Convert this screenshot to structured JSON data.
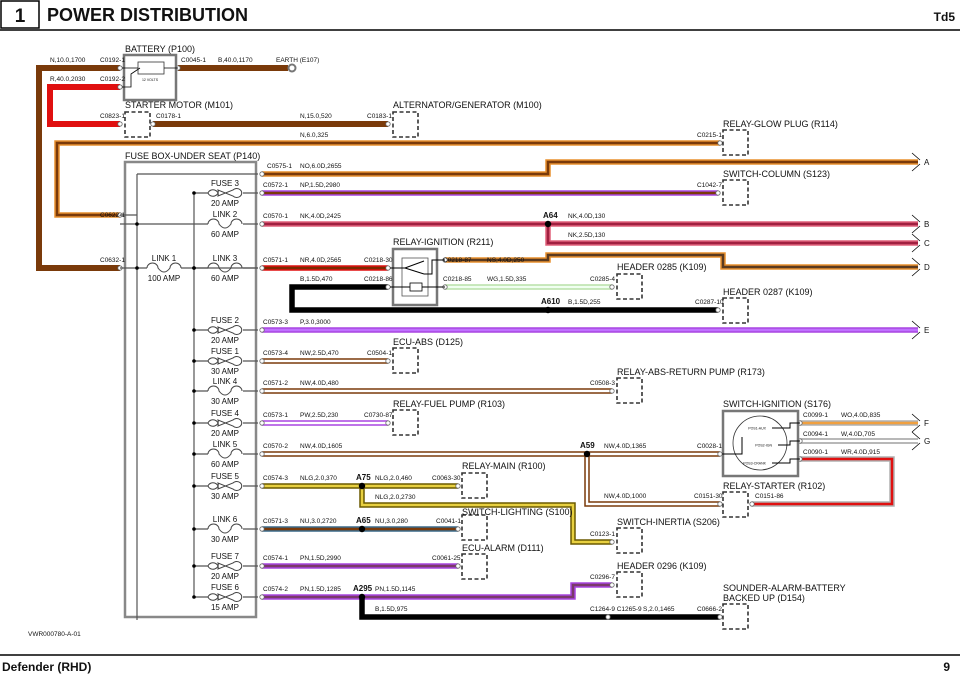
{
  "header": {
    "page_number": "1",
    "title": "POWER DISTRIBUTION",
    "engine": "Td5"
  },
  "footer": {
    "model": "Defender (RHD)",
    "page": "9",
    "drawing_ref": "VWR000780-A-01"
  },
  "components": {
    "battery": "BATTERY (P100)",
    "battery_volts": "12 VOLTS",
    "starter_motor": "STARTER MOTOR (M101)",
    "alternator": "ALTERNATOR/GENERATOR (M100)",
    "relay_glow_plug": "RELAY-GLOW PLUG (R114)",
    "fuse_box": "FUSE BOX-UNDER SEAT (P140)",
    "switch_column": "SWITCH-COLUMN (S123)",
    "relay_ignition": "RELAY-IGNITION (R211)",
    "header_0285": "HEADER 0285 (K109)",
    "header_0287": "HEADER 0287 (K109)",
    "ecu_abs": "ECU-ABS (D125)",
    "relay_abs_pump": "RELAY-ABS-RETURN PUMP (R173)",
    "relay_fuel_pump": "RELAY-FUEL PUMP (R103)",
    "switch_ignition": "SWITCH-IGNITION (S176)",
    "relay_main": "RELAY-MAIN (R100)",
    "relay_starter": "RELAY-STARTER (R102)",
    "switch_lighting": "SWITCH-LIGHTING (S100)",
    "switch_inertia": "SWITCH-INERTIA (S206)",
    "ecu_alarm": "ECU-ALARM (D111)",
    "header_0296": "HEADER 0296 (K109)",
    "sounder_line1": "SOUNDER-ALARM-BATTERY",
    "sounder_line2": "BACKED UP (D154)",
    "earth": "EARTH (E107)"
  },
  "ignition_positions": [
    "POS1-AUX",
    "POS2-IGN",
    "POS3-CRANK"
  ],
  "connectors": {
    "c0192_1": "C0192-1",
    "c0192_2": "C0192-2",
    "c0045_1": "C0045-1",
    "c0823_1": "C0823-1",
    "c0178_1": "C0178-1",
    "c0183_1": "C0183-1",
    "c0215_1": "C0215-1",
    "c0575_1": "C0575-1",
    "c0572_1": "C0572-1",
    "c1042_7": "C1042-7",
    "c0622_1": "C0622-1",
    "c0570_1": "C0570-1",
    "c0632_1": "C0632-1",
    "c0571_1": "C0571-1",
    "c0218_30": "C0218-30",
    "c0218_87": "C0218-87",
    "c0218_86": "C0218-86",
    "c0218_85": "C0218-85",
    "c0285_4": "C0285-4",
    "c0287_10": "C0287-10",
    "c0573_3": "C0573-3",
    "c0573_4": "C0573-4",
    "c0504_1": "C0504-1",
    "c0571_2": "C0571-2",
    "c0508_3": "C0508-3",
    "c0573_1": "C0573-1",
    "c0730_87": "C0730-87",
    "c0099_1": "C0099-1",
    "c0094_1": "C0094-1",
    "c0090_1": "C0090-1",
    "c0570_2": "C0570-2",
    "c0028_1": "C0028-1",
    "c0574_3": "C0574-3",
    "c0063_30": "C0063-30",
    "c0151_30": "C0151-30",
    "c0151_86": "C0151-86",
    "c0571_3": "C0571-3",
    "c0041_1": "C0041-1",
    "c0123_1": "C0123-1",
    "c0574_1": "C0574-1",
    "c0061_25": "C0061-25",
    "c0296_7": "C0296-7",
    "c0574_2": "C0574-2",
    "c1264_c1265": "C1264-9 C1265-9",
    "c0666_2": "C0666-2"
  },
  "wires": {
    "w_n_10_1700": "N,10.0,1700",
    "w_r_40_2030": "R,40.0,2030",
    "w_b_40_1170": "B,40.0,1170",
    "w_n_15_520": "N,15.0,520",
    "w_n_6_325": "N,6.0,325",
    "w_no_2655": "NO,6.0D,2655",
    "w_np_2980": "NP,1.5D,2980",
    "w_nk_2425": "NK,4.0D,2425",
    "w_nk_4_130": "NK,4.0D,130",
    "w_nk_25_130": "NK,2.5D,130",
    "w_nr_2565": "NR,4.0D,2565",
    "w_ns_250": "NS,4.0D,250",
    "w_b_470": "B,1.5D,470",
    "w_wg_335": "WG,1.5D,335",
    "w_b_255": "B,1.5D,255",
    "w_p_3000": "P,3.0,3000",
    "w_nw_470": "NW,2.5D,470",
    "w_nw_480": "NW,4.0D,480",
    "w_pw_230": "PW,2.5D,230",
    "w_wo_835": "WO,4.0D,835",
    "w_w_705": "W,4.0D,705",
    "w_wr_915": "WR,4.0D,915",
    "w_nw_1605": "NW,4.0D,1605",
    "w_nw_1365": "NW,4.0D,1365",
    "w_nw_1000": "NW,4.0D,1000",
    "w_nlg_370": "NLG,2.0,370",
    "w_nlg_460": "NLG,2.0,460",
    "w_nlg_2730": "NLG,2.0,2730",
    "w_nu_2720": "NU,3.0,2720",
    "w_nu_280": "NU,3.0,280",
    "w_pn_2990": "PN,1.5D,2990",
    "w_pn_1285": "PN,1.5D,1285",
    "w_pn_1145": "PN,1.5D,1145",
    "w_b_975": "B,1.5D,975",
    "w_s_1465": "S,2.0,1465"
  },
  "splices": {
    "a64": "A64",
    "a610": "A610",
    "a59": "A59",
    "a75": "A75",
    "a65": "A65",
    "a295": "A295"
  },
  "fuses": [
    {
      "name": "FUSE 3",
      "rating": "20 AMP",
      "type": "fuse"
    },
    {
      "name": "LINK 2",
      "rating": "60 AMP",
      "type": "link"
    },
    {
      "name": "LINK 1",
      "rating": "100 AMP",
      "type": "link"
    },
    {
      "name": "LINK 3",
      "rating": "60 AMP",
      "type": "link"
    },
    {
      "name": "FUSE 2",
      "rating": "20 AMP",
      "type": "fuse"
    },
    {
      "name": "FUSE 1",
      "rating": "30 AMP",
      "type": "fuse"
    },
    {
      "name": "LINK 4",
      "rating": "30 AMP",
      "type": "link"
    },
    {
      "name": "FUSE 4",
      "rating": "20 AMP",
      "type": "fuse"
    },
    {
      "name": "LINK 5",
      "rating": "60 AMP",
      "type": "link"
    },
    {
      "name": "FUSE 5",
      "rating": "30 AMP",
      "type": "fuse"
    },
    {
      "name": "LINK 6",
      "rating": "30 AMP",
      "type": "link"
    },
    {
      "name": "FUSE 7",
      "rating": "20 AMP",
      "type": "fuse"
    },
    {
      "name": "FUSE 6",
      "rating": "15 AMP",
      "type": "fuse"
    }
  ],
  "off_page": [
    "A",
    "B",
    "C",
    "D",
    "E",
    "F",
    "G"
  ],
  "colors": {
    "brown": "#7a3a0a",
    "orange": "#e8902e",
    "red": "#e01010",
    "purple": "#a845e0",
    "pink": "#e0607a",
    "black": "#000000",
    "light_green": "#b8e0a8",
    "olive": "#6b5a00",
    "yellow": "#e8d040",
    "blue": "#3a6a8a"
  }
}
